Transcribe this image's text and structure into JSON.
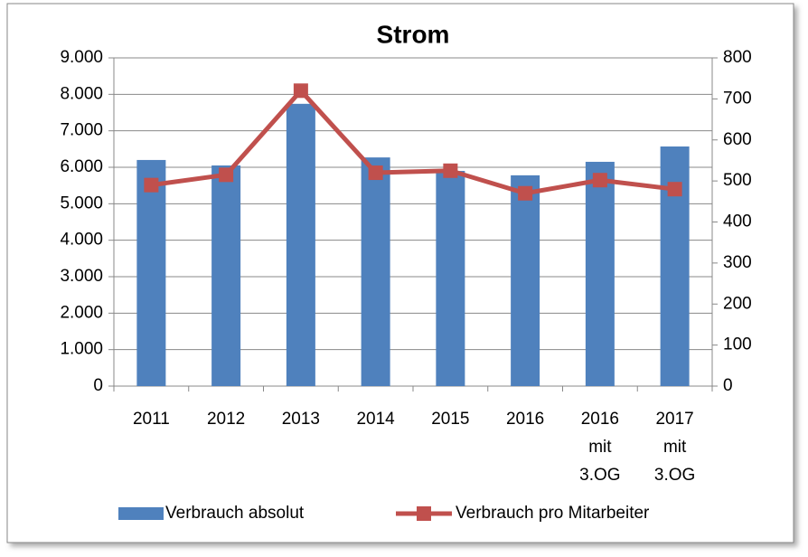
{
  "chart_data": {
    "type": "bar-line",
    "title": "Strom",
    "categories": [
      "2011",
      "2012",
      "2013",
      "2014",
      "2015",
      "2016",
      "2016 mit 3.OG",
      "2017 mit 3.OG"
    ],
    "series": [
      {
        "name": "Verbrauch absolut",
        "color": "#4f81bd",
        "type": "bar",
        "values": [
          6200,
          6050,
          7740,
          6270,
          5900,
          5780,
          6150,
          6570
        ]
      },
      {
        "name": "Verbrauch pro Mitarbeiter",
        "color": "#c0504d",
        "type": "line",
        "axis": "y2",
        "values": [
          490,
          515,
          720,
          520,
          525,
          470,
          502,
          480
        ]
      }
    ],
    "ylim": [
      0,
      9000
    ],
    "yticks": [
      {
        "value": 0,
        "label": "0"
      },
      {
        "value": 1000,
        "label": "1.000"
      },
      {
        "value": 2000,
        "label": "2.000"
      },
      {
        "value": 3000,
        "label": "3.000"
      },
      {
        "value": 4000,
        "label": "4.000"
      },
      {
        "value": 5000,
        "label": "5.000"
      },
      {
        "value": 6000,
        "label": "6.000"
      },
      {
        "value": 7000,
        "label": "7.000"
      },
      {
        "value": 8000,
        "label": "8.000"
      },
      {
        "value": 9000,
        "label": "9.000"
      }
    ],
    "y2lim": [
      0,
      800
    ],
    "y2ticks": [
      0,
      100,
      200,
      300,
      400,
      500,
      600,
      700,
      800
    ],
    "grid": true,
    "legend": "bottom"
  }
}
